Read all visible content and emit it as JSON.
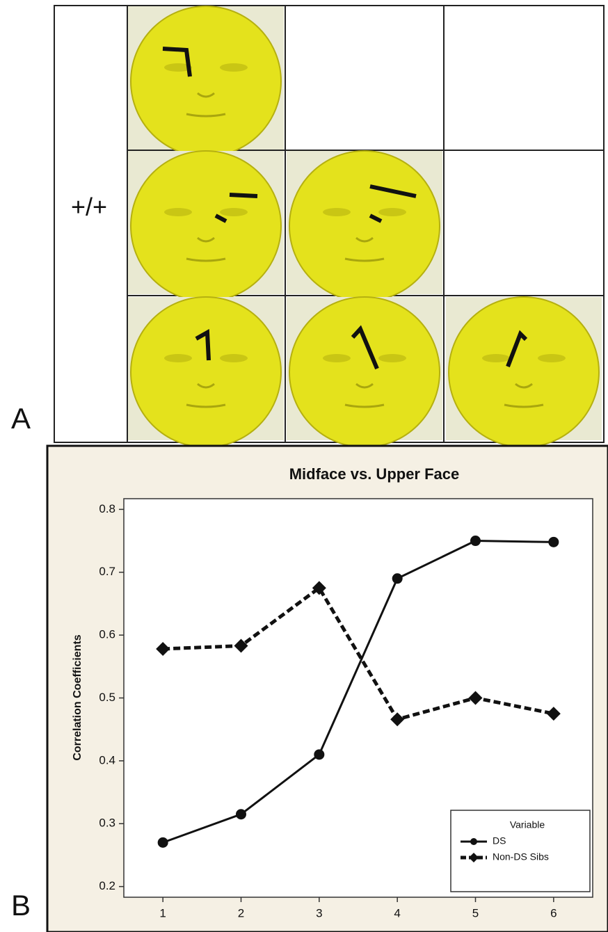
{
  "panel_labels": [
    "A",
    "B"
  ],
  "genotype": "+/+",
  "chart_data": {
    "type": "line",
    "title": "Midface vs. Upper Face",
    "y_label": "Correlation Coefficients",
    "x": [
      1,
      2,
      3,
      4,
      5,
      6
    ],
    "series": [
      {
        "name": "DS",
        "color": "#111111",
        "marker": "circle",
        "dash": "solid",
        "values": [
          0.27,
          0.315,
          0.41,
          0.69,
          0.75,
          0.748
        ]
      },
      {
        "name": "Non-DS Sibs",
        "color": "#111111",
        "marker": "diamond",
        "dash": "dashed",
        "values": [
          0.578,
          0.583,
          0.675,
          0.466,
          0.5,
          0.475
        ]
      }
    ],
    "legend_title": "Variable",
    "legend": "lower right",
    "xlim": [
      0.5,
      6.5
    ],
    "xticks": [
      1,
      2,
      3,
      4,
      5,
      6
    ],
    "ylim": [
      0.183,
      0.817
    ],
    "yticks": [
      {
        "value": 0.2,
        "label": "0.2"
      },
      {
        "value": 0.3,
        "label": "0.3"
      },
      {
        "value": 0.4,
        "label": "0.4"
      },
      {
        "value": 0.5,
        "label": "0.5"
      },
      {
        "value": 0.6,
        "label": "0.6"
      },
      {
        "value": 0.7,
        "label": "0.7"
      },
      {
        "value": 0.8,
        "label": "0.8"
      }
    ]
  }
}
